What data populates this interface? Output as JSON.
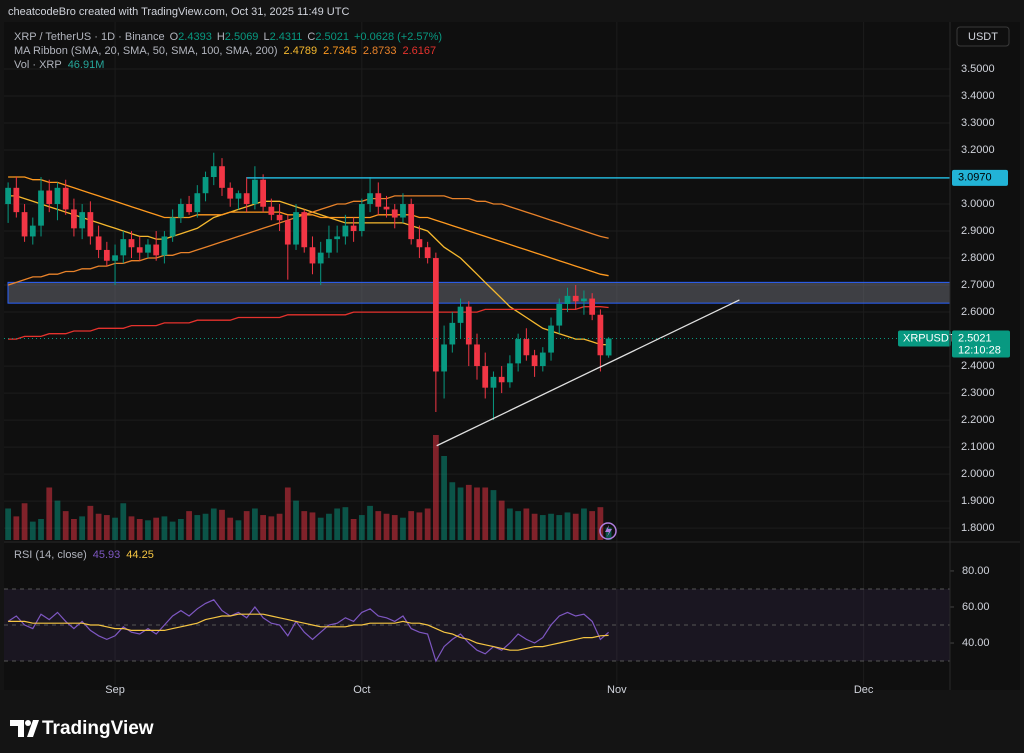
{
  "header": "cheatcodeBro created with TradingView.com, Oct 31, 2025 11:49 UTC",
  "chart_data": {
    "type": "candlestick",
    "symbol": "XRP / TetherUS · 1D · Binance",
    "ohlc_letters": [
      "O",
      "H",
      "L",
      "C"
    ],
    "change": "+0.0628 (+2.57%)",
    "currency": "USDT",
    "xlim": [
      -0.5,
      114.5
    ],
    "xticks": [
      {
        "value": 13,
        "label": "Sep"
      },
      {
        "value": 43,
        "label": "Oct"
      },
      {
        "value": 74,
        "label": "Nov"
      },
      {
        "value": 104,
        "label": "Dec"
      }
    ],
    "ylim": [
      1.756,
      3.674
    ],
    "yticks": [
      {
        "value": 3.5,
        "label": "3.5000"
      },
      {
        "value": 3.4,
        "label": "3.4000"
      },
      {
        "value": 3.3,
        "label": "3.3000"
      },
      {
        "value": 3.2,
        "label": "3.2000"
      },
      {
        "value": 3.0,
        "label": "3.0000"
      },
      {
        "value": 2.9,
        "label": "2.9000"
      },
      {
        "value": 2.8,
        "label": "2.8000"
      },
      {
        "value": 2.7,
        "label": "2.7000"
      },
      {
        "value": 2.6,
        "label": "2.6000"
      },
      {
        "value": 2.4,
        "label": "2.4000"
      },
      {
        "value": 2.3,
        "label": "2.3000"
      },
      {
        "value": 2.2,
        "label": "2.2000"
      },
      {
        "value": 2.1,
        "label": "2.1000"
      },
      {
        "value": 2.0,
        "label": "2.0000"
      },
      {
        "value": 1.9,
        "label": "1.9000"
      },
      {
        "value": 1.8,
        "label": "1.8000"
      }
    ],
    "grid": true,
    "up_color": "#089981",
    "down_color": "#f23645",
    "open": [
      3.0,
      3.06,
      2.97,
      2.88,
      2.92,
      3.05,
      3.0,
      3.06,
      2.98,
      2.91,
      2.97,
      2.88,
      2.83,
      2.79,
      2.81,
      2.87,
      2.84,
      2.82,
      2.85,
      2.81,
      2.88,
      2.95,
      3.0,
      2.97,
      3.04,
      3.1,
      3.14,
      3.06,
      3.02,
      3.04,
      3.0,
      3.09,
      2.99,
      2.96,
      2.94,
      2.85,
      2.97,
      2.84,
      2.78,
      2.82,
      2.87,
      2.88,
      2.92,
      2.9,
      3.0,
      3.04,
      2.99,
      2.98,
      2.95,
      3.0,
      2.87,
      2.84,
      2.8,
      2.38,
      2.48,
      2.56,
      2.62,
      2.48,
      2.4,
      2.32,
      2.36,
      2.34,
      2.41,
      2.5,
      2.44,
      2.4,
      2.45,
      2.55,
      2.63,
      2.66,
      2.64,
      2.65,
      2.59,
      2.4393
    ],
    "high": [
      3.08,
      3.1,
      3.0,
      2.95,
      3.1,
      3.09,
      3.08,
      3.09,
      3.02,
      3.0,
      3.01,
      2.92,
      2.86,
      2.85,
      2.9,
      2.9,
      2.88,
      2.87,
      2.9,
      2.9,
      2.98,
      3.02,
      3.03,
      3.07,
      3.12,
      3.19,
      3.17,
      3.08,
      3.05,
      3.1,
      3.14,
      3.11,
      3.02,
      3.0,
      2.96,
      3.0,
      2.98,
      2.88,
      2.86,
      2.92,
      2.92,
      2.96,
      2.95,
      3.02,
      3.1,
      3.08,
      3.03,
      3.0,
      3.04,
      3.02,
      2.92,
      2.86,
      2.82,
      2.55,
      2.6,
      2.65,
      2.64,
      2.52,
      2.45,
      2.38,
      2.4,
      2.44,
      2.52,
      2.54,
      2.46,
      2.47,
      2.58,
      2.65,
      2.69,
      2.7,
      2.68,
      2.67,
      2.61,
      2.5069
    ],
    "low": [
      2.93,
      2.95,
      2.86,
      2.85,
      2.88,
      2.97,
      2.94,
      2.96,
      2.88,
      2.87,
      2.85,
      2.8,
      2.77,
      2.7,
      2.78,
      2.8,
      2.79,
      2.8,
      2.79,
      2.78,
      2.86,
      2.93,
      2.96,
      2.95,
      3.01,
      3.07,
      3.03,
      2.99,
      2.98,
      2.97,
      2.98,
      2.97,
      2.94,
      2.9,
      2.72,
      2.83,
      2.82,
      2.74,
      2.7,
      2.8,
      2.82,
      2.85,
      2.86,
      2.88,
      2.97,
      2.96,
      2.95,
      2.91,
      2.93,
      2.85,
      2.8,
      2.78,
      2.23,
      2.28,
      2.45,
      2.5,
      2.4,
      2.35,
      2.28,
      2.2,
      2.3,
      2.32,
      2.38,
      2.42,
      2.36,
      2.38,
      2.42,
      2.52,
      2.6,
      2.61,
      2.59,
      2.57,
      2.38,
      2.4311
    ],
    "close": [
      3.06,
      2.97,
      2.88,
      2.92,
      3.05,
      3.0,
      3.06,
      2.98,
      2.91,
      2.97,
      2.88,
      2.83,
      2.79,
      2.81,
      2.87,
      2.84,
      2.82,
      2.85,
      2.81,
      2.88,
      2.95,
      3.0,
      2.97,
      3.04,
      3.1,
      3.14,
      3.06,
      3.02,
      3.04,
      3.0,
      3.09,
      2.99,
      2.96,
      2.94,
      2.85,
      2.97,
      2.84,
      2.78,
      2.82,
      2.87,
      2.88,
      2.92,
      2.9,
      3.0,
      3.04,
      2.99,
      2.98,
      2.95,
      3.0,
      2.87,
      2.84,
      2.8,
      2.38,
      2.48,
      2.56,
      2.62,
      2.48,
      2.4,
      2.32,
      2.36,
      2.34,
      2.41,
      2.5,
      2.44,
      2.4,
      2.45,
      2.55,
      2.63,
      2.66,
      2.64,
      2.65,
      2.59,
      2.44,
      2.5021
    ],
    "ma_ribbon": {
      "name": "MA Ribbon (SMA, 20, SMA, 50, SMA, 100, SMA, 200)",
      "series": [
        {
          "color": "#f5b82e",
          "values": [
            3.03,
            3.03,
            3.02,
            3.01,
            3.0,
            2.99,
            2.98,
            2.97,
            2.96,
            2.95,
            2.94,
            2.93,
            2.92,
            2.91,
            2.9,
            2.89,
            2.88,
            2.88,
            2.87,
            2.87,
            2.88,
            2.89,
            2.9,
            2.91,
            2.93,
            2.95,
            2.96,
            2.97,
            2.98,
            2.99,
            3.0,
            3.01,
            3.01,
            3.01,
            3.0,
            2.99,
            2.98,
            2.97,
            2.96,
            2.95,
            2.94,
            2.93,
            2.93,
            2.93,
            2.93,
            2.93,
            2.93,
            2.93,
            2.93,
            2.92,
            2.91,
            2.9,
            2.87,
            2.84,
            2.82,
            2.8,
            2.77,
            2.74,
            2.71,
            2.68,
            2.65,
            2.62,
            2.6,
            2.58,
            2.56,
            2.54,
            2.53,
            2.52,
            2.51,
            2.5,
            2.5,
            2.49,
            2.48,
            2.4789
          ]
        },
        {
          "color": "#ff9a1f",
          "values": [
            3.1,
            3.1,
            3.1,
            3.09,
            3.09,
            3.08,
            3.08,
            3.07,
            3.06,
            3.05,
            3.04,
            3.03,
            3.02,
            3.01,
            3.0,
            2.99,
            2.98,
            2.97,
            2.96,
            2.95,
            2.95,
            2.95,
            2.95,
            2.96,
            2.96,
            2.96,
            2.96,
            2.97,
            2.97,
            2.97,
            2.97,
            2.97,
            2.97,
            2.97,
            2.96,
            2.96,
            2.96,
            2.96,
            2.95,
            2.95,
            2.95,
            2.95,
            2.95,
            2.95,
            2.95,
            2.96,
            2.96,
            2.96,
            2.96,
            2.96,
            2.95,
            2.95,
            2.94,
            2.93,
            2.92,
            2.91,
            2.9,
            2.89,
            2.88,
            2.87,
            2.86,
            2.85,
            2.84,
            2.83,
            2.82,
            2.81,
            2.8,
            2.79,
            2.78,
            2.77,
            2.76,
            2.75,
            2.74,
            2.7345
          ]
        },
        {
          "color": "#e8822a",
          "values": [
            2.7,
            2.71,
            2.72,
            2.73,
            2.73,
            2.74,
            2.74,
            2.75,
            2.75,
            2.76,
            2.76,
            2.77,
            2.77,
            2.78,
            2.78,
            2.79,
            2.79,
            2.8,
            2.8,
            2.81,
            2.81,
            2.82,
            2.82,
            2.83,
            2.84,
            2.85,
            2.86,
            2.87,
            2.88,
            2.89,
            2.9,
            2.91,
            2.92,
            2.93,
            2.94,
            2.95,
            2.96,
            2.97,
            2.98,
            2.99,
            3.0,
            3.0,
            3.01,
            3.01,
            3.02,
            3.02,
            3.02,
            3.03,
            3.03,
            3.03,
            3.03,
            3.03,
            3.03,
            3.03,
            3.02,
            3.02,
            3.02,
            3.01,
            3.01,
            3.0,
            3.0,
            2.99,
            2.98,
            2.97,
            2.96,
            2.95,
            2.94,
            2.93,
            2.92,
            2.91,
            2.9,
            2.89,
            2.88,
            2.8733
          ]
        },
        {
          "color": "#e5322d",
          "values": [
            2.5,
            2.5,
            2.51,
            2.51,
            2.51,
            2.52,
            2.52,
            2.52,
            2.53,
            2.53,
            2.53,
            2.54,
            2.54,
            2.54,
            2.54,
            2.55,
            2.55,
            2.55,
            2.55,
            2.56,
            2.56,
            2.56,
            2.56,
            2.57,
            2.57,
            2.57,
            2.57,
            2.57,
            2.58,
            2.58,
            2.58,
            2.58,
            2.58,
            2.58,
            2.59,
            2.59,
            2.59,
            2.59,
            2.59,
            2.59,
            2.59,
            2.59,
            2.6,
            2.6,
            2.6,
            2.6,
            2.6,
            2.6,
            2.6,
            2.6,
            2.6,
            2.6,
            2.6,
            2.6,
            2.6,
            2.6,
            2.6,
            2.6,
            2.61,
            2.61,
            2.61,
            2.61,
            2.61,
            2.61,
            2.61,
            2.61,
            2.61,
            2.61,
            2.61,
            2.61,
            2.62,
            2.62,
            2.62,
            2.6167
          ]
        }
      ]
    },
    "volume": {
      "name": "Vol · XRP",
      "legend_value": "46.91M",
      "values": [
        120,
        90,
        140,
        70,
        80,
        200,
        150,
        110,
        80,
        90,
        130,
        100,
        95,
        85,
        140,
        90,
        80,
        75,
        85,
        90,
        70,
        80,
        110,
        95,
        100,
        120,
        115,
        85,
        75,
        110,
        120,
        95,
        90,
        100,
        200,
        150,
        110,
        105,
        85,
        100,
        120,
        125,
        80,
        95,
        130,
        110,
        100,
        95,
        85,
        110,
        105,
        120,
        400,
        320,
        220,
        200,
        210,
        200,
        200,
        190,
        150,
        120,
        110,
        120,
        100,
        95,
        100,
        95,
        105,
        100,
        120,
        110,
        125,
        46.91
      ]
    },
    "level": {
      "value": 3.097,
      "label": "3.0970",
      "from": 29,
      "color": "#22b3d6"
    },
    "zone": [
      2.633,
      2.71
    ],
    "trendline": {
      "x": [
        52.1,
        88.9
      ],
      "y": [
        2.105,
        2.645
      ]
    },
    "price_tag": {
      "symbol": "XRPUSDT",
      "countdown": "12:10:28"
    },
    "rsi": {
      "name": "RSI (14, close)",
      "ylim": [
        16.7,
        94.4
      ],
      "yticks": [
        {
          "value": 80,
          "label": "80.00"
        },
        {
          "value": 60,
          "label": "60.00"
        },
        {
          "value": 40,
          "label": "40.00"
        }
      ],
      "bands": [
        70,
        50,
        30
      ],
      "series": [
        {
          "color": "#7e57c2",
          "values": [
            52,
            55,
            50,
            48,
            56,
            53,
            57,
            52,
            48,
            52,
            47,
            44,
            42,
            44,
            49,
            46,
            45,
            48,
            45,
            50,
            55,
            58,
            55,
            59,
            62,
            64,
            58,
            55,
            57,
            54,
            60,
            54,
            51,
            50,
            44,
            52,
            46,
            42,
            46,
            50,
            51,
            54,
            52,
            57,
            59,
            55,
            54,
            52,
            55,
            48,
            46,
            45,
            30,
            38,
            42,
            45,
            40,
            36,
            34,
            38,
            36,
            40,
            45,
            42,
            40,
            43,
            50,
            55,
            57,
            55,
            56,
            52,
            42,
            45.93
          ]
        },
        {
          "color": "#f5c542",
          "values": [
            52,
            52,
            52,
            51,
            51,
            51,
            51,
            51,
            51,
            51,
            50,
            50,
            49,
            48,
            48,
            47,
            47,
            47,
            47,
            47,
            48,
            49,
            50,
            51,
            53,
            54,
            55,
            55,
            56,
            56,
            56,
            56,
            55,
            54,
            53,
            52,
            51,
            50,
            49,
            49,
            49,
            49,
            50,
            50,
            51,
            51,
            51,
            51,
            52,
            51,
            51,
            50,
            48,
            46,
            45,
            43,
            42,
            40,
            39,
            38,
            37,
            36,
            36,
            37,
            38,
            38,
            39,
            40,
            41,
            42,
            43,
            43,
            44,
            44.25
          ]
        }
      ]
    }
  },
  "footer": "TradingView"
}
